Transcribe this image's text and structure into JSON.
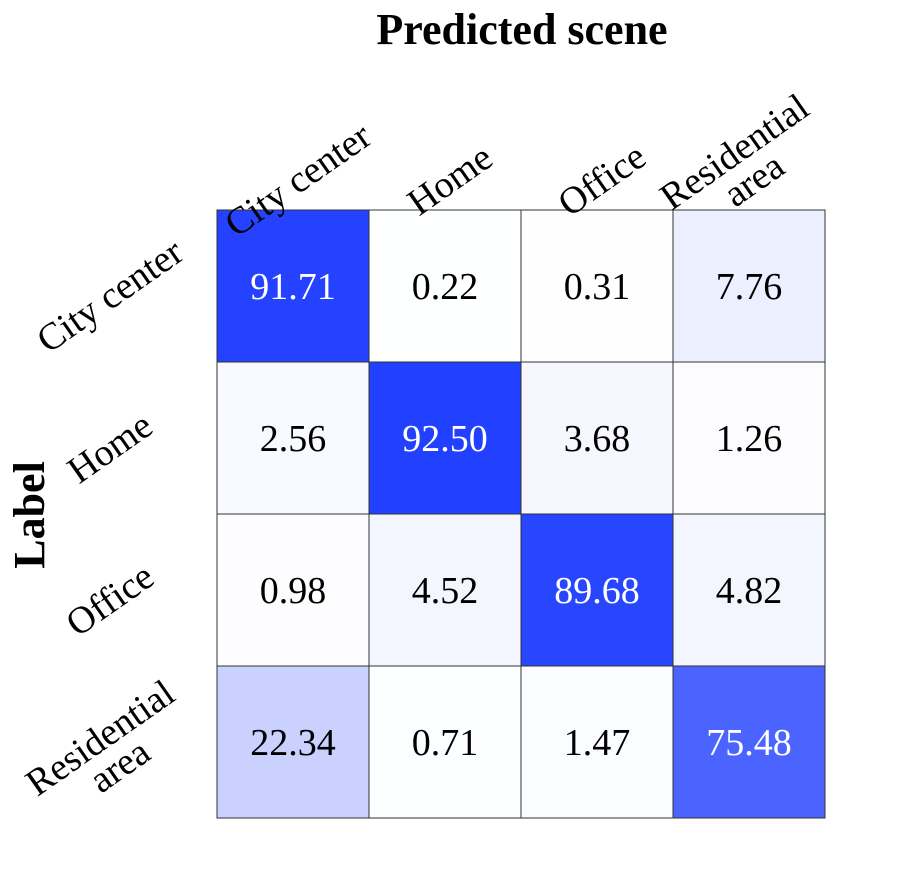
{
  "chart_data": {
    "type": "heatmap",
    "title": "Predicted scene",
    "xlabel": "Predicted scene",
    "ylabel": "Label",
    "x_categories": [
      [
        "City center"
      ],
      [
        "Home"
      ],
      [
        "Office"
      ],
      [
        "Residential",
        "area"
      ]
    ],
    "y_categories": [
      [
        "City center"
      ],
      [
        "Home"
      ],
      [
        "Office"
      ],
      [
        "Residential",
        "area"
      ]
    ],
    "values": [
      [
        "91.71",
        "0.22",
        "0.31",
        "7.76"
      ],
      [
        "2.56",
        "92.50",
        "3.68",
        "1.26"
      ],
      [
        "0.98",
        "4.52",
        "89.68",
        "4.82"
      ],
      [
        "22.34",
        "0.71",
        "1.47",
        "75.48"
      ]
    ],
    "colormap": {
      "low": "#ffffff",
      "high": "#2240ff"
    },
    "vmin": 0,
    "vmax": 92.5,
    "grid": true,
    "text_color_dark": "#000000",
    "text_color_light": "#ffffff"
  }
}
